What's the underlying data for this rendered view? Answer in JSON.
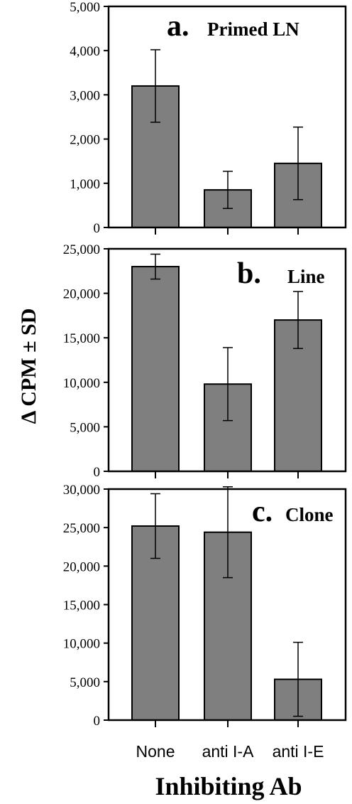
{
  "figure": {
    "ylabel": "Δ CPM ± SD",
    "xlabel": "Inhibiting Ab",
    "bar_color": "#7f7f7f"
  },
  "chart_data": [
    {
      "type": "bar",
      "panel_letter": "a.",
      "title": "Primed LN",
      "categories": [
        "None",
        "anti I-A",
        "anti I-E"
      ],
      "values": [
        3200,
        850,
        1450
      ],
      "errors": [
        820,
        420,
        820
      ],
      "ylim": [
        0,
        5000
      ],
      "yticks": [
        0,
        1000,
        2000,
        3000,
        4000,
        5000
      ],
      "ytick_labels": [
        "0",
        "1,000",
        "2,000",
        "3,000",
        "4,000",
        "5,000"
      ],
      "grid": false
    },
    {
      "type": "bar",
      "panel_letter": "b.",
      "title": "Line",
      "categories": [
        "None",
        "anti I-A",
        "anti I-E"
      ],
      "values": [
        23000,
        9800,
        17000
      ],
      "errors": [
        1400,
        4100,
        3200
      ],
      "ylim": [
        0,
        25000
      ],
      "yticks": [
        0,
        5000,
        10000,
        15000,
        20000,
        25000
      ],
      "ytick_labels": [
        "0",
        "5,000",
        "10,000",
        "15,000",
        "20,000",
        "25,000"
      ],
      "grid": false
    },
    {
      "type": "bar",
      "panel_letter": "c.",
      "title": "Clone",
      "categories": [
        "None",
        "anti I-A",
        "anti I-E"
      ],
      "values": [
        25200,
        24400,
        5300
      ],
      "errors": [
        4200,
        5900,
        4800
      ],
      "ylim": [
        0,
        30000
      ],
      "yticks": [
        0,
        5000,
        10000,
        15000,
        20000,
        25000,
        30000
      ],
      "ytick_labels": [
        "0",
        "5,000",
        "10,000",
        "15,000",
        "20,000",
        "25,000",
        "30,000"
      ],
      "grid": false
    }
  ]
}
